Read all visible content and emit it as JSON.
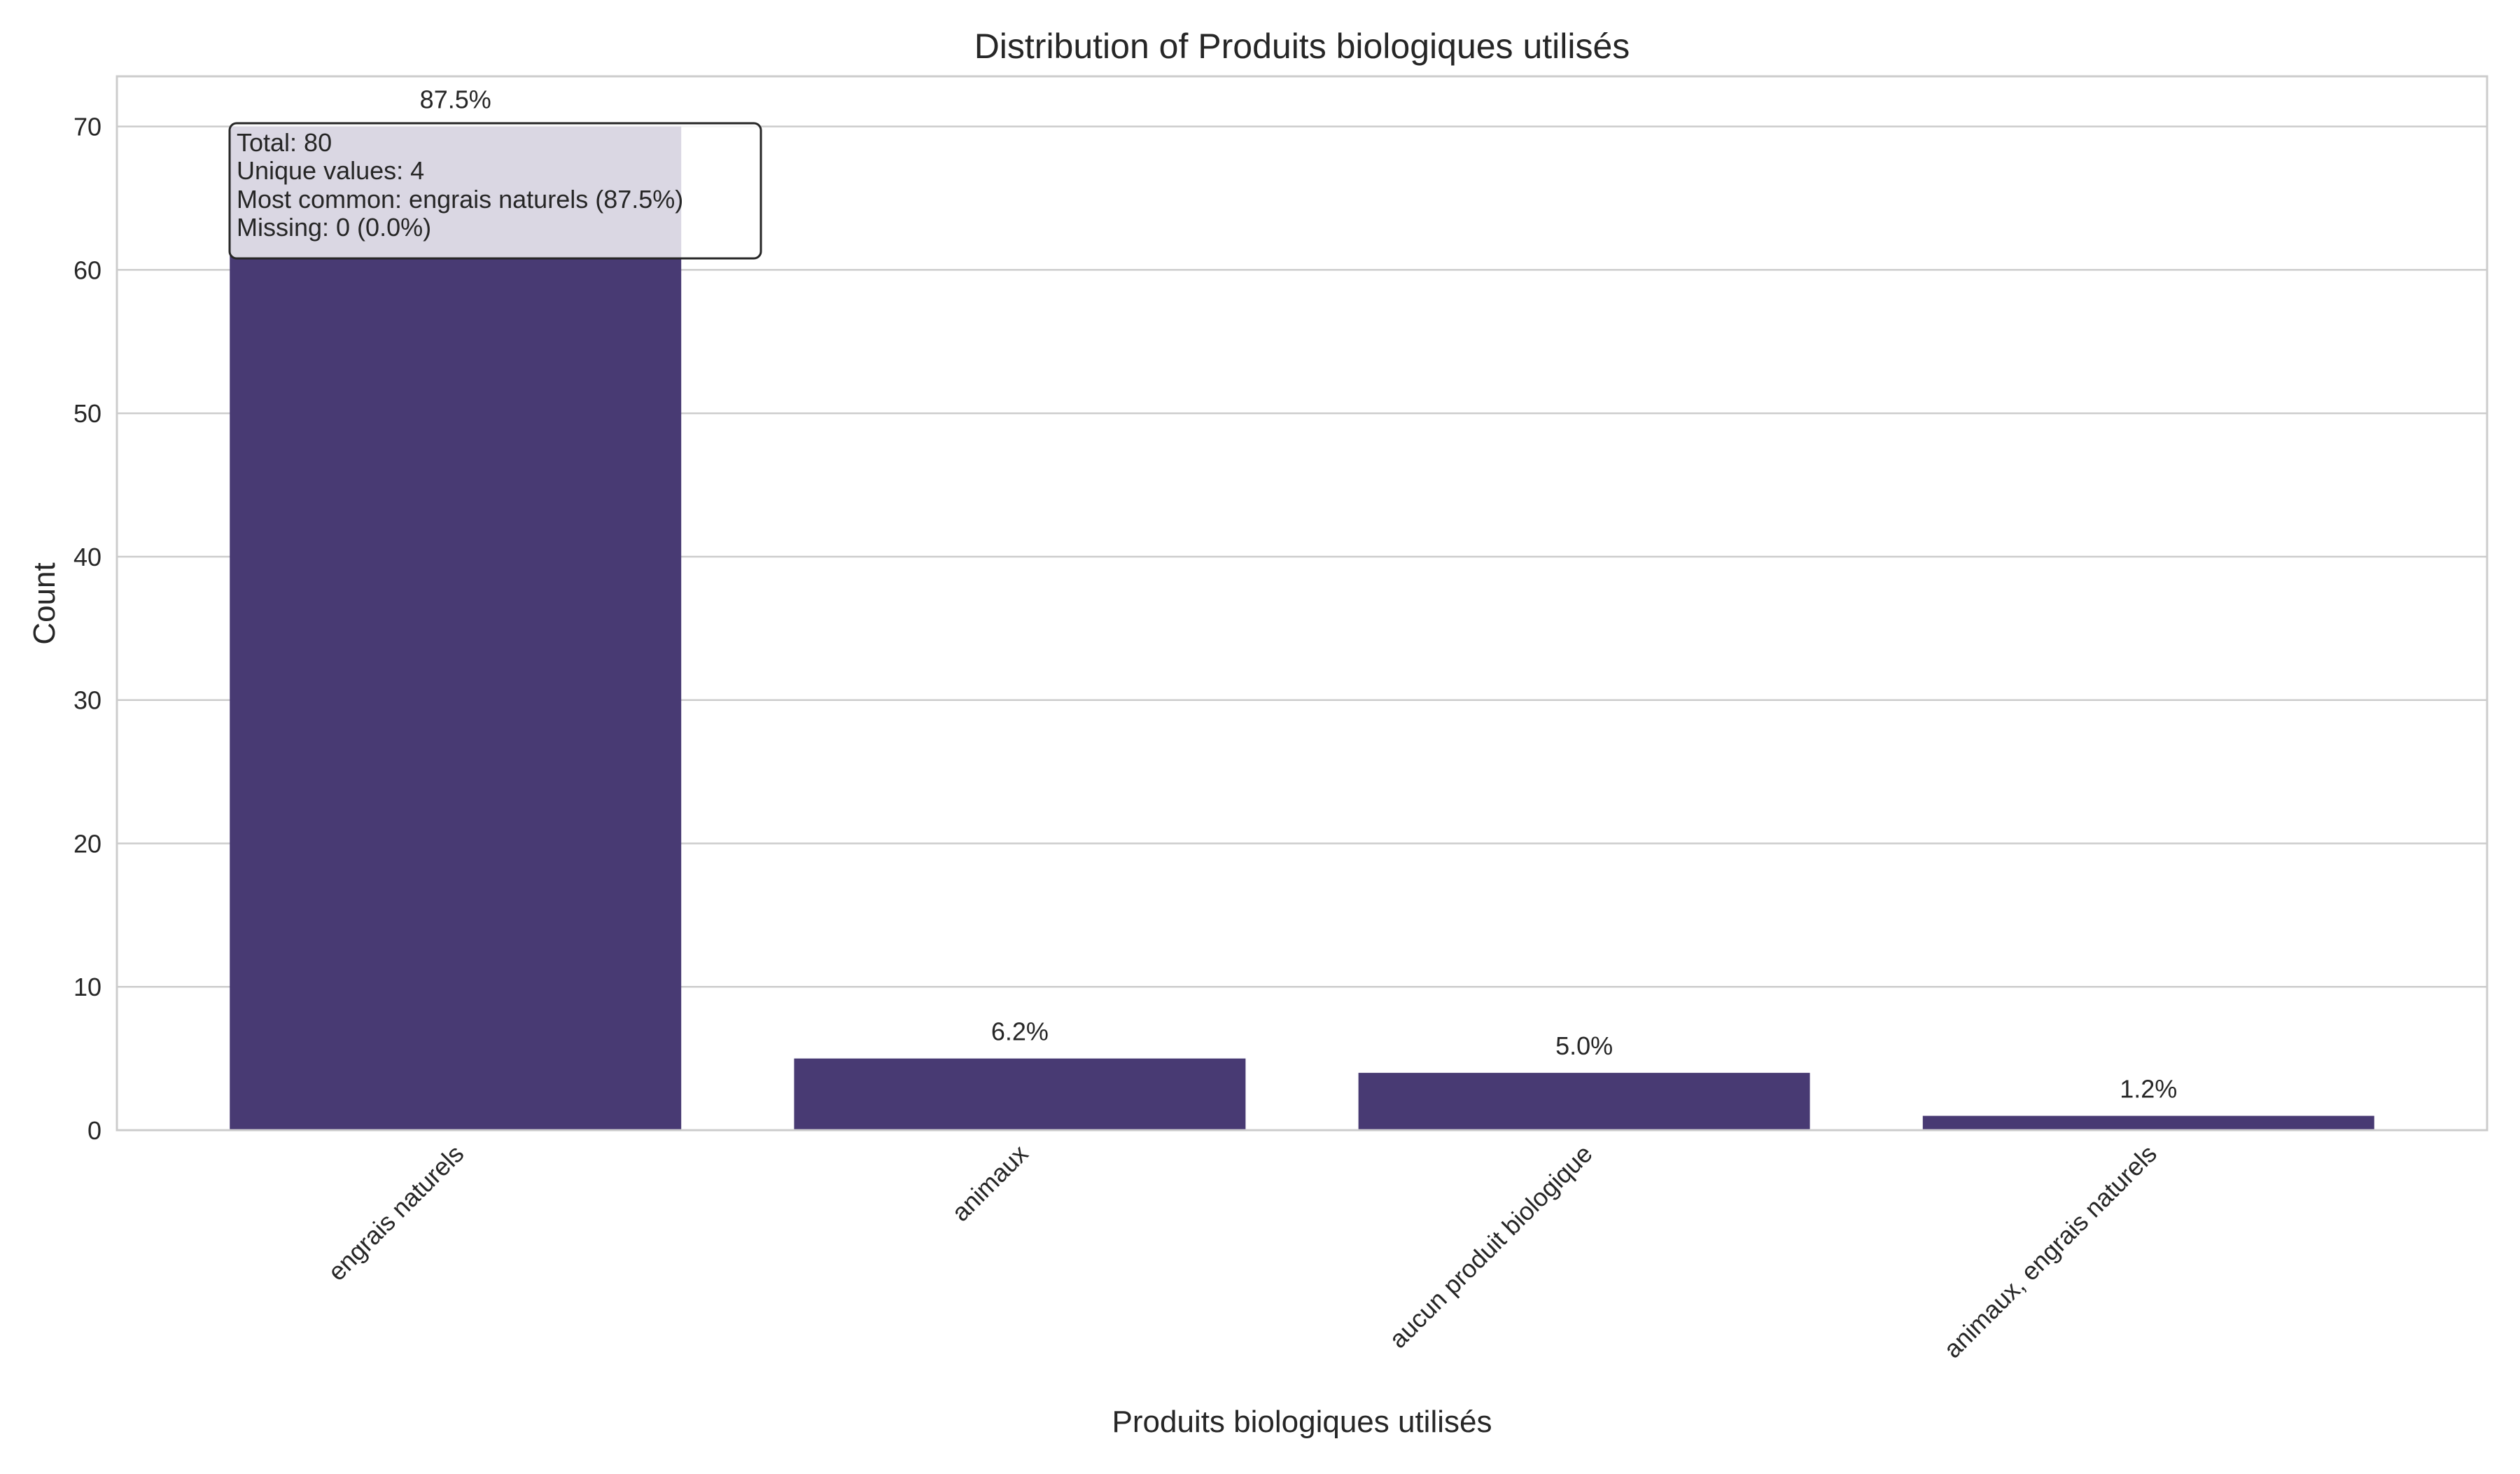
{
  "chart_data": {
    "type": "bar",
    "title": "Distribution of Produits biologiques utilisés",
    "xlabel": "Produits biologiques utilisés",
    "ylabel": "Count",
    "categories": [
      "engrais naturels",
      "animaux",
      "aucun produit biologique",
      "animaux, engrais naturels"
    ],
    "values": [
      70,
      5,
      4,
      1
    ],
    "bar_labels": [
      "87.5%",
      "6.2%",
      "5.0%",
      "1.2%"
    ],
    "ylim": [
      0,
      73.5
    ],
    "yticks": [
      0,
      10,
      20,
      30,
      40,
      50,
      60,
      70
    ],
    "grid": true,
    "bar_color": "#483a73",
    "stats_box": {
      "lines": [
        "Total: 80",
        "Unique values: 4",
        "Most common: engrais naturels (87.5%)",
        "Missing: 0 (0.0%)"
      ]
    }
  }
}
